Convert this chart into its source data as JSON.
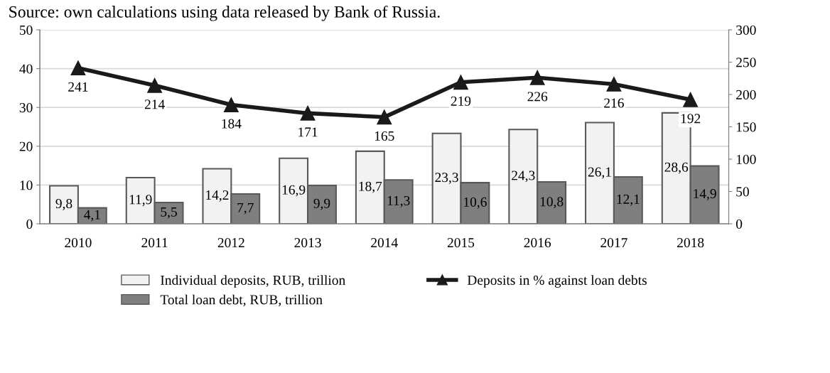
{
  "chart_data": {
    "type": "bar",
    "annotations": [
      "Source: own calculations using data released by Bank of Russia."
    ],
    "categories": [
      "2010",
      "2011",
      "2012",
      "2013",
      "2014",
      "2015",
      "2016",
      "2017",
      "2018"
    ],
    "series": [
      {
        "name": "Individual deposits, RUB, trillion",
        "color": "#f2f2f2",
        "values": [
          9.8,
          11.9,
          14.2,
          16.9,
          18.7,
          23.3,
          24.3,
          26.1,
          28.6
        ],
        "value_labels": [
          "9,8",
          "11,9",
          "14,2",
          "16,9",
          "18,7",
          "23,3",
          "24,3",
          "26,1",
          "28,6"
        ]
      },
      {
        "name": "Total loan debt, RUB, trillion",
        "color": "#7f7f7f",
        "values": [
          4.1,
          5.5,
          7.7,
          9.9,
          11.3,
          10.6,
          10.8,
          12.1,
          14.9
        ],
        "value_labels": [
          "4,1",
          "5,5",
          "7,7",
          "9,9",
          "11,3",
          "10,6",
          "10,8",
          "12,1",
          "14,9"
        ]
      },
      {
        "name": "Deposits in % against loan debts",
        "type": "line",
        "axis": "y2",
        "color": "#1a1a1a",
        "marker": "triangle",
        "values": [
          241,
          214,
          184,
          171,
          165,
          219,
          226,
          216,
          192
        ],
        "value_labels": [
          "241",
          "214",
          "184",
          "171",
          "165",
          "219",
          "226",
          "216",
          "192"
        ]
      }
    ],
    "ylim": [
      0,
      50
    ],
    "yticks": [
      0,
      10,
      20,
      30,
      40,
      50
    ],
    "y2lim": [
      0,
      300
    ],
    "y2ticks": [
      0,
      50,
      100,
      150,
      200,
      250,
      300
    ],
    "grid": "y",
    "legend": "bottom"
  }
}
